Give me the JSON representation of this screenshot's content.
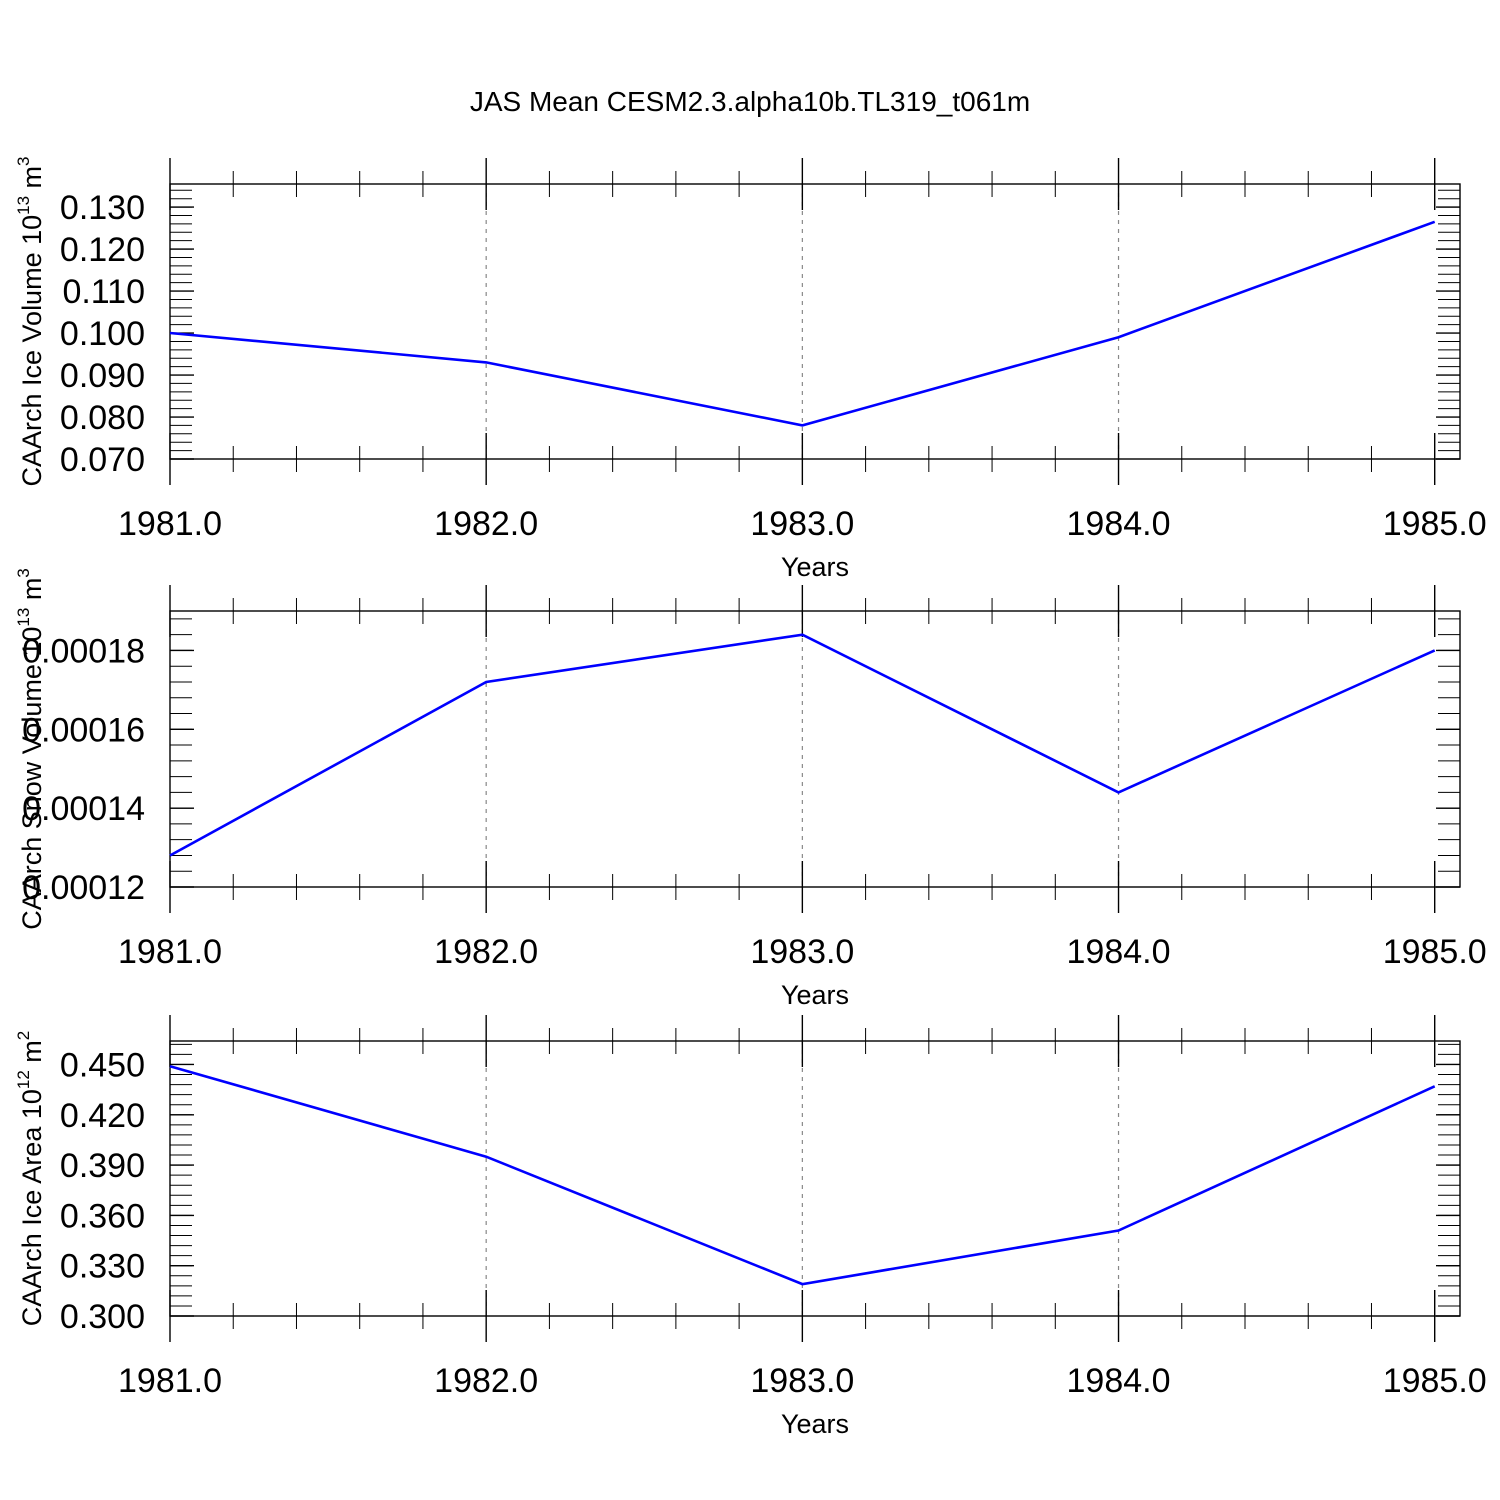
{
  "title": "JAS Mean CESM2.3.alpha10b.TL319_t061m",
  "line_color": "#0000ff",
  "chart_data": [
    {
      "type": "line",
      "x": [
        1981,
        1982,
        1983,
        1984,
        1985
      ],
      "series": [
        {
          "values": [
            0.1,
            0.093,
            0.078,
            0.099,
            0.1265
          ]
        }
      ],
      "xlabel": "Years",
      "ylabel": {
        "text": "CAArch Ice Volume 10",
        "exp": "13",
        "unit": " m",
        "unit_exp": "3"
      },
      "xlim": [
        1981,
        1985.08
      ],
      "ylim": [
        0.07,
        0.1355
      ],
      "xticks": [
        1981,
        1982,
        1983,
        1984,
        1985
      ],
      "xtick_labels": [
        "1981.0",
        "1982.0",
        "1983.0",
        "1984.0",
        "1985.0"
      ],
      "yticks": [
        0.07,
        0.08,
        0.09,
        0.1,
        0.11,
        0.12,
        0.13
      ],
      "ytick_labels": [
        "0.070",
        "0.080",
        "0.090",
        "0.100",
        "0.110",
        "0.120",
        "0.130"
      ],
      "yminor_step": 0.002,
      "grid": "vertical dashed"
    },
    {
      "type": "line",
      "x": [
        1981,
        1982,
        1983,
        1984,
        1985
      ],
      "series": [
        {
          "values": [
            0.000128,
            0.000172,
            0.000184,
            0.000144,
            0.00018
          ]
        }
      ],
      "xlabel": "Years",
      "ylabel": {
        "text": "CAArch Snow Volume 10",
        "exp": "13",
        "unit": " m",
        "unit_exp": "3"
      },
      "xlim": [
        1981,
        1985.08
      ],
      "ylim": [
        0.00012,
        0.00019
      ],
      "xticks": [
        1981,
        1982,
        1983,
        1984,
        1985
      ],
      "xtick_labels": [
        "1981.0",
        "1982.0",
        "1983.0",
        "1984.0",
        "1985.0"
      ],
      "yticks": [
        0.00012,
        0.00014,
        0.00016,
        0.00018
      ],
      "ytick_labels": [
        "0.00012",
        "0.00014",
        "0.00016",
        "0.00018"
      ],
      "yminor_step": 4e-06,
      "grid": "vertical dashed"
    },
    {
      "type": "line",
      "x": [
        1981,
        1982,
        1983,
        1984,
        1985
      ],
      "series": [
        {
          "values": [
            0.449,
            0.395,
            0.319,
            0.351,
            0.437
          ]
        }
      ],
      "xlabel": "Years",
      "ylabel": {
        "text": "CAArch Ice Area 10",
        "exp": "12",
        "unit": " m",
        "unit_exp": "2"
      },
      "xlim": [
        1981,
        1985.08
      ],
      "ylim": [
        0.3,
        0.464
      ],
      "xticks": [
        1981,
        1982,
        1983,
        1984,
        1985
      ],
      "xtick_labels": [
        "1981.0",
        "1982.0",
        "1983.0",
        "1984.0",
        "1985.0"
      ],
      "yticks": [
        0.3,
        0.33,
        0.36,
        0.39,
        0.42,
        0.45
      ],
      "ytick_labels": [
        "0.300",
        "0.330",
        "0.360",
        "0.390",
        "0.420",
        "0.450"
      ],
      "yminor_step": 0.006,
      "grid": "vertical dashed"
    }
  ]
}
